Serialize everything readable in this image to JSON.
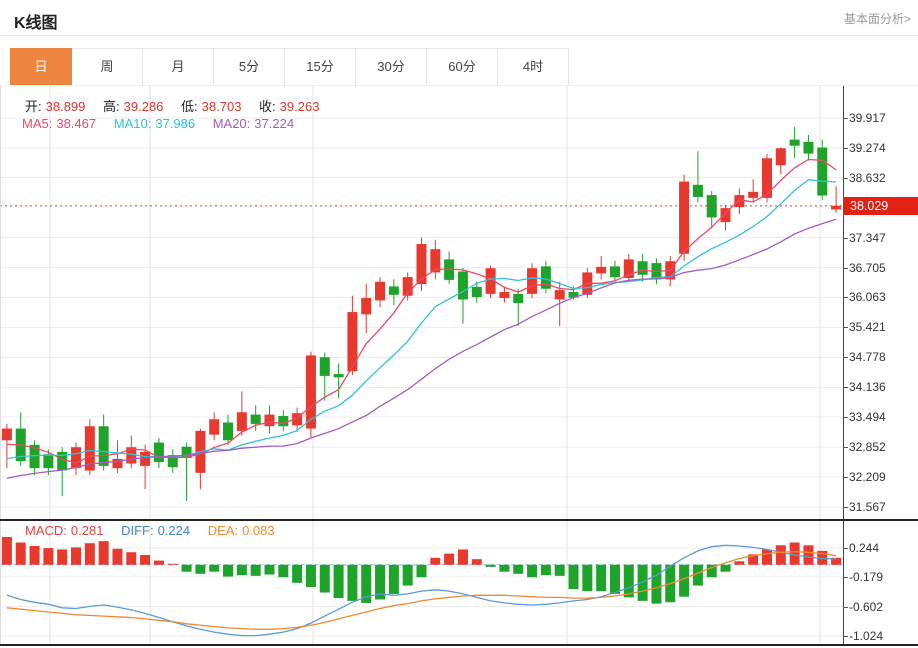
{
  "header": {
    "title": "K线图",
    "link_label": "基本面分析>"
  },
  "tabs": [
    {
      "id": "day",
      "label": "日",
      "active": true
    },
    {
      "id": "week",
      "label": "周",
      "active": false
    },
    {
      "id": "month",
      "label": "月",
      "active": false
    },
    {
      "id": "5min",
      "label": "5分",
      "active": false
    },
    {
      "id": "15min",
      "label": "15分",
      "active": false
    },
    {
      "id": "30min",
      "label": "30分",
      "active": false
    },
    {
      "id": "60min",
      "label": "60分",
      "active": false
    },
    {
      "id": "4hour",
      "label": "4时",
      "active": false
    }
  ],
  "ohlc_legend": {
    "open_label": "开:",
    "open_value": "38.899",
    "high_label": "高:",
    "high_value": "39.286",
    "low_label": "低:",
    "low_value": "38.703",
    "close_label": "收:",
    "close_value": "39.263"
  },
  "ma_legend": {
    "ma5_label": "MA5:",
    "ma5_value": "38.467",
    "ma10_label": "MA10:",
    "ma10_value": "37.986",
    "ma20_label": "MA20:",
    "ma20_value": "37.224"
  },
  "macd_legend": {
    "macd_label": "MACD:",
    "macd_value": "0.281",
    "diff_label": "DIFF:",
    "diff_value": "0.224",
    "dea_label": "DEA:",
    "dea_value": "0.083"
  },
  "price_line": {
    "value": 38.029,
    "label": "38.029"
  },
  "colors": {
    "accent_tab": "#ee8541",
    "up": "#e8392f",
    "down": "#1ea32b",
    "ma5": "#ee4866",
    "ma10": "#2fc3d8",
    "ma20": "#a45cc5",
    "diff_line": "#5b9bd5",
    "dea_line": "#ee8a33",
    "price_tag_bg": "#e32014",
    "grid": "#ececec",
    "vgrid": "#e3e3e3",
    "zero_dash": "#8fb4dd"
  },
  "chart_data": {
    "type": "candlestick",
    "title": "K线图 (日K)",
    "legend_position": "top-left overlay",
    "grid": true,
    "y_axis_ticks": [
      39.917,
      39.274,
      38.632,
      37.347,
      36.705,
      36.063,
      35.421,
      34.778,
      34.136,
      33.494,
      32.852,
      32.209,
      31.567
    ],
    "y_range": [
      31.267,
      40.6
    ],
    "x_gridlines": [
      50,
      150,
      313,
      567,
      820
    ],
    "current_price": 38.029,
    "hover_ohlc": {
      "open": 38.899,
      "high": 39.286,
      "low": 38.703,
      "close": 39.263
    },
    "hover_ma": {
      "ma5": 38.467,
      "ma10": 37.986,
      "ma20": 37.224
    },
    "candles_ohlc_estimated": [
      [
        33.0,
        33.35,
        32.4,
        33.25
      ],
      [
        33.25,
        33.6,
        32.45,
        32.55
      ],
      [
        32.9,
        33.0,
        32.25,
        32.4
      ],
      [
        32.7,
        32.8,
        32.25,
        32.4
      ],
      [
        32.75,
        32.85,
        31.8,
        32.35
      ],
      [
        32.4,
        32.95,
        32.25,
        32.85
      ],
      [
        32.35,
        33.45,
        32.25,
        33.3
      ],
      [
        33.3,
        33.55,
        32.35,
        32.45
      ],
      [
        32.4,
        33.0,
        32.3,
        32.6
      ],
      [
        32.5,
        33.1,
        32.4,
        32.85
      ],
      [
        32.45,
        32.9,
        31.95,
        32.75
      ],
      [
        32.95,
        33.05,
        32.4,
        32.53
      ],
      [
        32.68,
        32.8,
        32.3,
        32.42
      ],
      [
        32.86,
        32.95,
        31.7,
        32.62
      ],
      [
        32.3,
        33.25,
        31.95,
        33.2
      ],
      [
        33.12,
        33.6,
        33.0,
        33.45
      ],
      [
        33.38,
        33.55,
        32.9,
        33.0
      ],
      [
        33.2,
        34.05,
        33.1,
        33.6
      ],
      [
        33.55,
        33.75,
        33.2,
        33.35
      ],
      [
        33.3,
        33.75,
        33.15,
        33.55
      ],
      [
        33.52,
        33.65,
        33.2,
        33.3
      ],
      [
        33.32,
        33.7,
        33.18,
        33.58
      ],
      [
        33.25,
        34.9,
        33.05,
        34.82
      ],
      [
        34.78,
        34.88,
        33.85,
        34.38
      ],
      [
        34.42,
        34.65,
        33.9,
        34.35
      ],
      [
        34.48,
        36.1,
        34.4,
        35.75
      ],
      [
        35.7,
        36.35,
        35.3,
        36.05
      ],
      [
        36.0,
        36.5,
        35.85,
        36.4
      ],
      [
        36.3,
        36.45,
        35.9,
        36.12
      ],
      [
        36.1,
        36.6,
        36.0,
        36.5
      ],
      [
        36.35,
        37.35,
        36.2,
        37.21
      ],
      [
        36.6,
        37.3,
        36.45,
        37.1
      ],
      [
        36.88,
        37.05,
        36.35,
        36.44
      ],
      [
        36.62,
        36.7,
        35.5,
        36.02
      ],
      [
        36.29,
        36.4,
        35.95,
        36.07
      ],
      [
        36.14,
        36.75,
        36.05,
        36.69
      ],
      [
        36.05,
        36.3,
        35.95,
        36.18
      ],
      [
        36.14,
        36.25,
        35.45,
        35.94
      ],
      [
        36.14,
        36.8,
        36.05,
        36.69
      ],
      [
        36.73,
        36.85,
        36.15,
        36.25
      ],
      [
        36.02,
        36.4,
        35.45,
        36.22
      ],
      [
        36.18,
        36.3,
        36.02,
        36.06
      ],
      [
        36.12,
        36.7,
        36.05,
        36.6
      ],
      [
        36.58,
        36.95,
        36.45,
        36.72
      ],
      [
        36.73,
        36.85,
        36.4,
        36.5
      ],
      [
        36.48,
        37.0,
        36.4,
        36.88
      ],
      [
        36.84,
        37.0,
        36.4,
        36.55
      ],
      [
        36.8,
        36.9,
        36.35,
        36.45
      ],
      [
        36.45,
        36.95,
        36.3,
        36.84
      ],
      [
        37.0,
        38.7,
        36.85,
        38.55
      ],
      [
        38.48,
        39.2,
        38.1,
        38.22
      ],
      [
        38.26,
        38.35,
        37.58,
        37.78
      ],
      [
        37.68,
        38.05,
        37.5,
        37.98
      ],
      [
        38.0,
        38.4,
        37.85,
        38.26
      ],
      [
        38.2,
        38.6,
        38.1,
        38.33
      ],
      [
        38.2,
        39.15,
        38.1,
        39.05
      ],
      [
        38.899,
        39.286,
        38.703,
        39.263
      ],
      [
        39.45,
        39.72,
        39.05,
        39.32
      ],
      [
        39.4,
        39.55,
        39.0,
        39.15
      ],
      [
        39.28,
        39.45,
        38.15,
        38.25
      ],
      [
        37.95,
        38.45,
        37.88,
        38.03
      ]
    ],
    "ma_periods": [
      5,
      10,
      20
    ],
    "ma_seed_history": [
      31.2,
      31.35,
      31.5,
      31.6,
      31.7,
      31.75,
      31.8,
      31.9,
      31.95,
      32.0,
      32.05,
      32.1,
      32.2,
      32.3,
      32.4,
      32.5,
      32.6,
      32.7,
      32.9,
      33.1
    ],
    "macd": {
      "y_ticks": [
        0.244,
        -0.179,
        -0.602,
        -1.024
      ],
      "y_range": [
        -1.17,
        0.63
      ],
      "hist_estimated": [
        0.4,
        0.32,
        0.27,
        0.24,
        0.22,
        0.25,
        0.31,
        0.34,
        0.23,
        0.18,
        0.14,
        0.06,
        0.01,
        -0.1,
        -0.13,
        -0.1,
        -0.17,
        -0.15,
        -0.16,
        -0.14,
        -0.18,
        -0.26,
        -0.32,
        -0.4,
        -0.48,
        -0.52,
        -0.55,
        -0.5,
        -0.42,
        -0.3,
        -0.18,
        0.1,
        0.16,
        0.22,
        0.08,
        -0.03,
        -0.1,
        -0.13,
        -0.18,
        -0.15,
        -0.16,
        -0.35,
        -0.38,
        -0.38,
        -0.42,
        -0.47,
        -0.52,
        -0.56,
        -0.54,
        -0.46,
        -0.3,
        -0.18,
        -0.1,
        0.05,
        0.15,
        0.22,
        0.281,
        0.32,
        0.28,
        0.2,
        0.1
      ],
      "diff_estimated": [
        -0.44,
        -0.5,
        -0.54,
        -0.57,
        -0.62,
        -0.63,
        -0.6,
        -0.58,
        -0.61,
        -0.65,
        -0.7,
        -0.76,
        -0.82,
        -0.88,
        -0.93,
        -0.97,
        -1.0,
        -1.02,
        -1.02,
        -1.0,
        -0.97,
        -0.92,
        -0.84,
        -0.74,
        -0.64,
        -0.54,
        -0.46,
        -0.42,
        -0.44,
        -0.42,
        -0.38,
        -0.36,
        -0.38,
        -0.42,
        -0.47,
        -0.52,
        -0.55,
        -0.57,
        -0.58,
        -0.57,
        -0.55,
        -0.52,
        -0.5,
        -0.46,
        -0.4,
        -0.33,
        -0.25,
        -0.15,
        -0.02,
        0.1,
        0.2,
        0.26,
        0.28,
        0.27,
        0.25,
        0.22,
        0.18,
        0.14,
        0.11,
        0.09,
        0.08
      ],
      "dea_estimated": [
        -0.62,
        -0.64,
        -0.66,
        -0.68,
        -0.7,
        -0.72,
        -0.73,
        -0.74,
        -0.75,
        -0.76,
        -0.78,
        -0.8,
        -0.82,
        -0.85,
        -0.87,
        -0.89,
        -0.91,
        -0.92,
        -0.93,
        -0.93,
        -0.92,
        -0.9,
        -0.87,
        -0.83,
        -0.78,
        -0.73,
        -0.68,
        -0.63,
        -0.59,
        -0.56,
        -0.52,
        -0.49,
        -0.47,
        -0.45,
        -0.44,
        -0.44,
        -0.44,
        -0.45,
        -0.46,
        -0.47,
        -0.47,
        -0.48,
        -0.48,
        -0.47,
        -0.45,
        -0.42,
        -0.38,
        -0.33,
        -0.27,
        -0.2,
        -0.12,
        -0.04,
        0.03,
        0.09,
        0.13,
        0.16,
        0.18,
        0.19,
        0.18,
        0.16,
        0.13
      ],
      "last_values": {
        "macd": 0.281,
        "diff": 0.224,
        "dea": 0.083
      }
    }
  }
}
